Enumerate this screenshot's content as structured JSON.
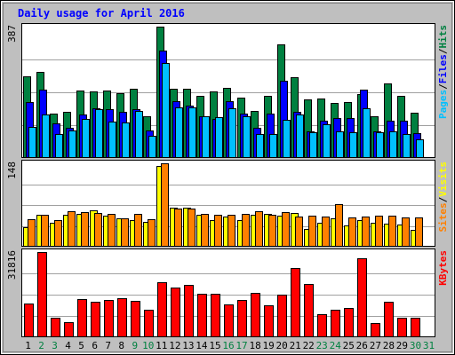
{
  "chart_data": {
    "type": "bar",
    "title": "Daily usage for April 2016",
    "categories": [
      "1",
      "2",
      "3",
      "4",
      "5",
      "6",
      "7",
      "8",
      "9",
      "10",
      "11",
      "12",
      "13",
      "14",
      "15",
      "16",
      "17",
      "18",
      "19",
      "20",
      "21",
      "22",
      "23",
      "24",
      "25",
      "26",
      "27",
      "28",
      "29",
      "30",
      "31"
    ],
    "weekend_days": [
      "2",
      "3",
      "9",
      "10",
      "16",
      "17",
      "23",
      "24",
      "30",
      "31"
    ],
    "panels": [
      {
        "id": "hits",
        "max_label": "387",
        "ylim": [
          0,
          387
        ],
        "legend": [
          {
            "text": "Pages",
            "color": "#00c0ff"
          },
          {
            "text": "Files",
            "color": "#0000ff"
          },
          {
            "text": "Hits",
            "color": "#008040"
          }
        ],
        "series": [
          {
            "name": "Hits",
            "color": "#008040",
            "values": [
              240,
              253,
              132,
              135,
              200,
              196,
              198,
              191,
              205,
              123,
              387,
              204,
              203,
              183,
              195,
              207,
              179,
              139,
              182,
              334,
              238,
              173,
              174,
              163,
              164,
              187,
              123,
              220,
              184,
              134
            ]
          },
          {
            "name": "Files",
            "color": "#0000ff",
            "values": [
              166,
              202,
              102,
              89,
              128,
              147,
              143,
              136,
              145,
              80,
              316,
              167,
              155,
              124,
              114,
              168,
              130,
              88,
              130,
              228,
              135,
              79,
              110,
              117,
              118,
              201,
              78,
              109,
              109,
              73
            ]
          },
          {
            "name": "Pages",
            "color": "#00c0ff",
            "values": [
              92,
              128,
              70,
              80,
              114,
              143,
              108,
              104,
              139,
              66,
              280,
              150,
              150,
              123,
              119,
              147,
              122,
              70,
              70,
              113,
              127,
              75,
              99,
              79,
              77,
              146,
              76,
              78,
              71,
              56
            ]
          }
        ]
      },
      {
        "id": "visits",
        "max_label": "148",
        "ylim": [
          0,
          148
        ],
        "legend": [
          {
            "text": "Sites",
            "color": "#ff8000"
          },
          {
            "text": "Visits",
            "color": "#ffff00"
          }
        ],
        "series": [
          {
            "name": "Visits",
            "color": "#ffff00",
            "values": [
              34,
              56,
              43,
              56,
              59,
              65,
              55,
              50,
              48,
              44,
              143,
              69,
              70,
              56,
              48,
              53,
              48,
              57,
              58,
              55,
              60,
              31,
              43,
              50,
              38,
              47,
              42,
              41,
              39,
              30
            ]
          },
          {
            "name": "Sites",
            "color": "#ff8000",
            "values": [
              49,
              57,
              47,
              63,
              61,
              60,
              58,
              51,
              59,
              49,
              148,
              68,
              67,
              59,
              56,
              57,
              58,
              63,
              56,
              62,
              53,
              55,
              54,
              76,
              52,
              54,
              55,
              55,
              52,
              52
            ]
          }
        ]
      },
      {
        "id": "kbytes",
        "max_label": "31816",
        "ylim": [
          0,
          31816
        ],
        "legend": [
          {
            "text": "KBytes",
            "color": "#ff0000"
          }
        ],
        "series": [
          {
            "name": "KBytes",
            "color": "#ff0000",
            "values": [
              12600,
              31816,
              7300,
              5500,
              14300,
              13300,
              13900,
              14500,
              13700,
              10300,
              20600,
              18600,
              19400,
              16100,
              16100,
              12400,
              13800,
              16600,
              11900,
              15900,
              25800,
              19800,
              8600,
              10200,
              11100,
              29600,
              5200,
              13400,
              7400,
              7300
            ]
          }
        ]
      }
    ],
    "grid": true,
    "legend_placement": "right, vertical"
  },
  "colors": {
    "page_bg": "#ffffff",
    "frame_bg": "#bfbfbf",
    "plot_bg": "#ffffff",
    "title_color": "#0000ff",
    "weekday_label": "#000000",
    "weekend_label": "#008040",
    "grid": "#a0a0a0",
    "separator": "#000000"
  }
}
